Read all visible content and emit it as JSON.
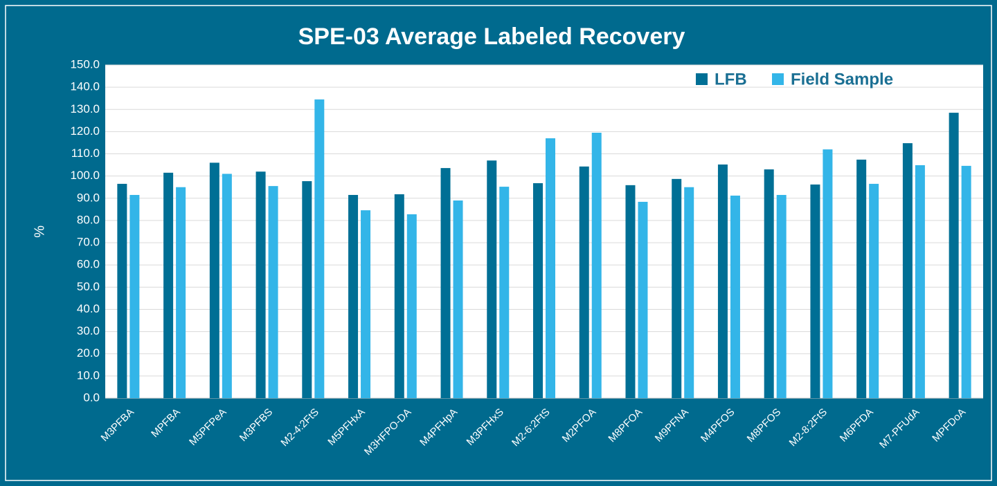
{
  "chart_data": {
    "type": "bar",
    "title": "SPE-03 Average Labeled Recovery",
    "y_label": "%",
    "categories": [
      "M3PFBA",
      "MPFBA",
      "M5PFPeA",
      "M3PFBS",
      "M2-4:2FtS",
      "M5PFHxA",
      "M3HFPO-DA",
      "M4PFHpA",
      "M3PFHxS",
      "M2-6:2FtS",
      "M2PFOA",
      "M8PFOA",
      "M9PFNA",
      "M4PFOS",
      "M8PFOS",
      "M2-8:2FtS",
      "M6PFDA",
      "M7-PFUdA",
      "MPFDoA"
    ],
    "series": [
      {
        "name": "LFB",
        "color": "#006f95",
        "values": [
          96.5,
          101.5,
          106,
          102,
          97.7,
          91.5,
          91.8,
          103.6,
          107,
          96.8,
          104.3,
          95.9,
          98.7,
          105.2,
          103,
          96.2,
          107.4,
          114.8,
          128.5
        ]
      },
      {
        "name": "Field Sample",
        "color": "#33b5e8",
        "values": [
          91.5,
          95,
          101,
          95.5,
          134.5,
          84.6,
          82.8,
          89,
          95.2,
          117,
          119.5,
          88.4,
          95,
          91.2,
          91.5,
          112,
          96.5,
          104.9,
          104.6
        ]
      }
    ],
    "ylim": [
      0,
      150
    ],
    "yticks": [
      {
        "value": 0,
        "label": "0.0"
      },
      {
        "value": 10,
        "label": "10.0"
      },
      {
        "value": 20,
        "label": "20.0"
      },
      {
        "value": 30,
        "label": "30.0"
      },
      {
        "value": 40,
        "label": "40.0"
      },
      {
        "value": 50,
        "label": "50.0"
      },
      {
        "value": 60,
        "label": "60.0"
      },
      {
        "value": 70,
        "label": "70.0"
      },
      {
        "value": 80,
        "label": "80.0"
      },
      {
        "value": 90,
        "label": "90.0"
      },
      {
        "value": 100,
        "label": "100.0"
      },
      {
        "value": 110,
        "label": "110.0"
      },
      {
        "value": 120,
        "label": "120.0"
      },
      {
        "value": 130,
        "label": "130.0"
      },
      {
        "value": 140,
        "label": "140.0"
      },
      {
        "value": 150,
        "label": "150.0"
      }
    ],
    "grid": true,
    "legend": "top-right"
  }
}
